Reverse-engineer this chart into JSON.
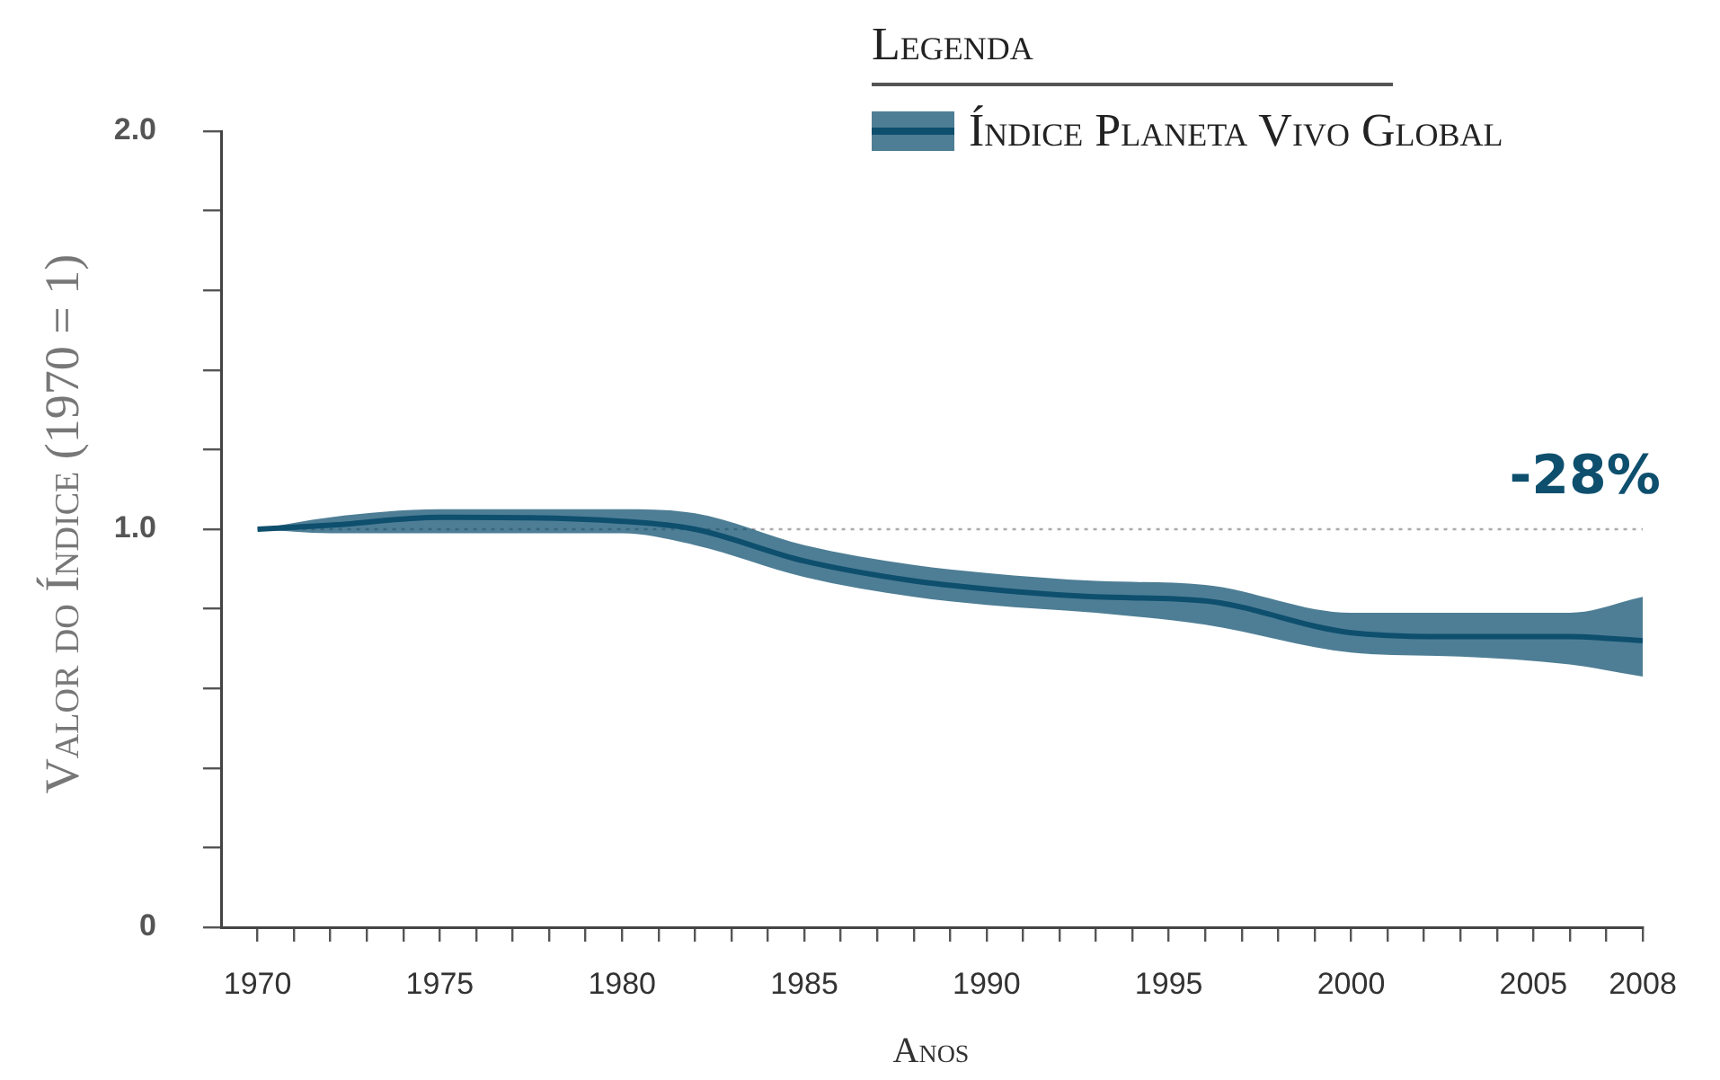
{
  "chart_data": {
    "type": "line",
    "xlabel": "Anos",
    "ylabel": "Valor do Índice (1970 = 1)",
    "legend_title": "Legenda",
    "legend": "top right",
    "grid": false,
    "marker": "none",
    "line_style": "solid",
    "xlim": [
      1969,
      2008
    ],
    "xticks": [
      1970,
      {
        "value": 1971,
        "label": null
      },
      {
        "value": 1972,
        "label": null
      },
      {
        "value": 1973,
        "label": null
      },
      {
        "value": 1974,
        "label": null
      },
      1975,
      {
        "value": 1976,
        "label": null
      },
      {
        "value": 1977,
        "label": null
      },
      {
        "value": 1978,
        "label": null
      },
      {
        "value": 1979,
        "label": null
      },
      1980,
      {
        "value": 1981,
        "label": null
      },
      {
        "value": 1982,
        "label": null
      },
      {
        "value": 1983,
        "label": null
      },
      {
        "value": 1984,
        "label": null
      },
      1985,
      {
        "value": 1986,
        "label": null
      },
      {
        "value": 1987,
        "label": null
      },
      {
        "value": 1988,
        "label": null
      },
      {
        "value": 1989,
        "label": null
      },
      1990,
      {
        "value": 1991,
        "label": null
      },
      {
        "value": 1992,
        "label": null
      },
      {
        "value": 1993,
        "label": null
      },
      {
        "value": 1994,
        "label": null
      },
      1995,
      {
        "value": 1996,
        "label": null
      },
      {
        "value": 1997,
        "label": null
      },
      {
        "value": 1998,
        "label": null
      },
      {
        "value": 1999,
        "label": null
      },
      2000,
      {
        "value": 2001,
        "label": null
      },
      {
        "value": 2002,
        "label": null
      },
      {
        "value": 2003,
        "label": null
      },
      {
        "value": 2004,
        "label": null
      },
      2005,
      {
        "value": 2006,
        "label": null
      },
      {
        "value": 2007,
        "label": null
      },
      2008
    ],
    "ylim": [
      0,
      2
    ],
    "yticks": [
      0,
      {
        "value": 0.2,
        "label": null
      },
      {
        "value": 0.4,
        "label": null
      },
      {
        "value": 0.6,
        "label": null
      },
      {
        "value": 0.8,
        "label": null
      },
      {
        "value": 1,
        "label": "1.0"
      },
      {
        "value": 1.2,
        "label": null
      },
      {
        "value": 1.4,
        "label": null
      },
      {
        "value": 1.6,
        "label": null
      },
      {
        "value": 1.8,
        "label": null
      },
      {
        "value": 2,
        "label": "2.0"
      }
    ],
    "x": [
      1970,
      1972,
      1975,
      1980,
      1982,
      1985,
      1988,
      1990,
      1993,
      1996,
      2000,
      2003,
      2006,
      2008
    ],
    "series": [
      {
        "name": "Índice Planeta Vivo Global",
        "color": "#0e4f6e",
        "values": [
          1,
          1.01,
          1.03,
          1.02,
          1,
          0.92,
          0.87,
          0.85,
          0.83,
          0.82,
          0.74,
          0.73,
          0.73,
          0.72
        ],
        "lower": [
          1,
          0.99,
          0.99,
          0.99,
          0.96,
          0.88,
          0.83,
          0.81,
          0.79,
          0.76,
          0.69,
          0.68,
          0.66,
          0.63
        ],
        "upper": [
          1,
          1.03,
          1.05,
          1.05,
          1.04,
          0.96,
          0.91,
          0.89,
          0.87,
          0.86,
          0.79,
          0.79,
          0.79,
          0.83
        ]
      }
    ],
    "ref_lines": [
      {
        "axis": "y",
        "value": 1,
        "color": "#aaaaaa",
        "line_style": "dotted"
      }
    ],
    "annotations": [
      "-28%"
    ]
  }
}
